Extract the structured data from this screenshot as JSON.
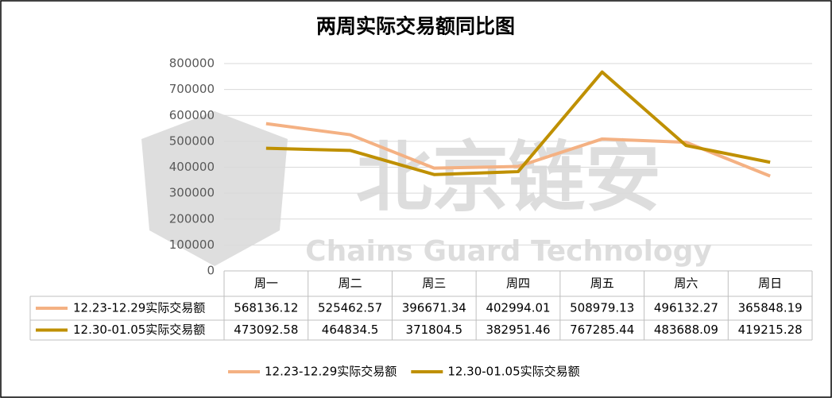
{
  "chart_data": {
    "type": "line",
    "title": "两周实际交易额同比图",
    "watermark": {
      "title": "北京链安",
      "subtitle": "Chains Guard Technology"
    },
    "categories": [
      "周一",
      "周二",
      "周三",
      "周四",
      "周五",
      "周六",
      "周日"
    ],
    "series": [
      {
        "name": "12.23-12.29实际交易额",
        "color": "#f4b183",
        "values": [
          568136.12,
          525462.57,
          396671.34,
          402994.01,
          508979.13,
          496132.27,
          365848.19
        ]
      },
      {
        "name": "12.30-01.05实际交易额",
        "color": "#bf9000",
        "values": [
          473092.58,
          464834.5,
          371804.5,
          382951.46,
          767285.44,
          483688.09,
          419215.28
        ]
      }
    ],
    "ylim": [
      0,
      800000
    ],
    "yticks": [
      0,
      100000,
      200000,
      300000,
      400000,
      500000,
      600000,
      700000,
      800000
    ],
    "grid": true,
    "legend": "bottom",
    "data_table": true
  }
}
